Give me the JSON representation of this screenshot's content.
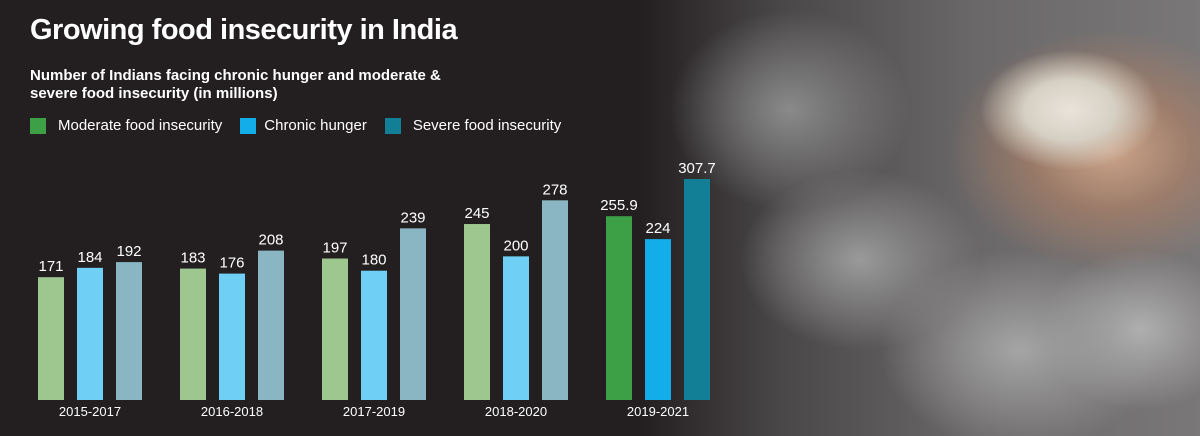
{
  "title": "Growing food insecurity in India",
  "subtitle": "Number of Indians facing chronic hunger and moderate & severe food insecurity (in millions)",
  "colors": {
    "moderate_past": "#9dc78f",
    "chronic_past": "#6fcff5",
    "severe_past": "#8ab6c4",
    "moderate_latest": "#3d9f46",
    "chronic_latest": "#13aeea",
    "severe_latest": "#137f97"
  },
  "chart_data": {
    "type": "bar",
    "title": "Growing food insecurity in India",
    "subtitle": "Number of Indians facing chronic hunger and moderate & severe food insecurity (in millions)",
    "xlabel": "",
    "ylabel": "",
    "legend_position": "top-left",
    "grid": false,
    "ylim": [
      0,
      320
    ],
    "categories": [
      "2015-2017",
      "2016-2018",
      "2017-2019",
      "2018-2020",
      "2019-2021"
    ],
    "series": [
      {
        "name": "Moderate food insecurity",
        "values": [
          171,
          183,
          197,
          245,
          255.9
        ],
        "labels": [
          "171",
          "183",
          "197",
          "245",
          "255.9"
        ]
      },
      {
        "name": "Chronic hunger",
        "values": [
          184,
          176,
          180,
          200,
          224
        ],
        "labels": [
          "184",
          "176",
          "180",
          "200",
          "224"
        ]
      },
      {
        "name": "Severe food insecurity",
        "values": [
          192,
          208,
          239,
          278,
          307.7
        ],
        "labels": [
          "192",
          "208",
          "239",
          "278",
          "307.7"
        ]
      }
    ]
  }
}
